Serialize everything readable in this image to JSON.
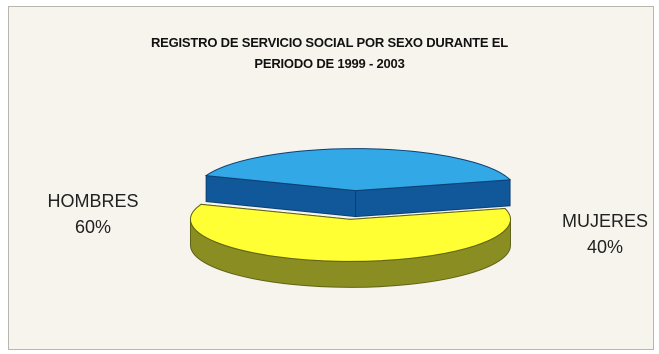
{
  "chart_data": {
    "type": "pie",
    "title_line1": "REGISTRO DE SERVICIO SOCIAL POR SEXO DURANTE EL",
    "title_line2": "PERIODO DE 1999 - 2003",
    "slices": [
      {
        "label": "HOMBRES",
        "percent_label": "60%",
        "value": 60,
        "top_color": "#ffff33",
        "side_color": "#8a8e22",
        "rim_color": "#5e6317"
      },
      {
        "label": "MUJERES",
        "percent_label": "40%",
        "value": 40,
        "top_color": "#33a8e6",
        "side_color": "#11589a",
        "rim_color": "#0b3f73"
      }
    ],
    "exploded": true,
    "three_d": true,
    "background_color": "#f6f4ec"
  }
}
